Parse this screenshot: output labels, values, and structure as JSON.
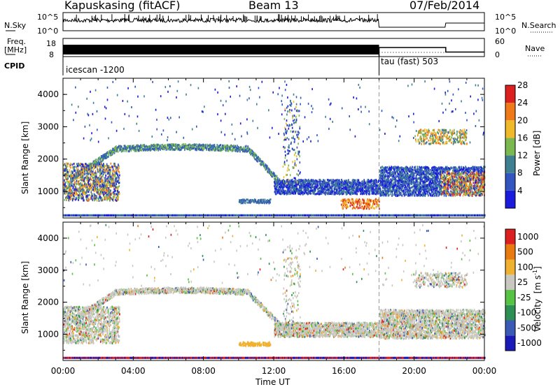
{
  "header": {
    "site": "Kapuskasing (fitACF)",
    "beam": "Beam 13",
    "date": "07/Feb/2014"
  },
  "status_panels": {
    "nsky_label": "N.Sky",
    "nsky_ticks": [
      "10^5",
      "10^0"
    ],
    "nsearch_label": "N.Search",
    "nsearch_ticks": [
      "10^5",
      "10^0"
    ],
    "freq_label_1": "Freq.",
    "freq_label_2": "[MHz]",
    "freq_ticks": [
      "18",
      "8"
    ],
    "nave_label": "Nave",
    "nave_ticks": [
      "60",
      "0"
    ],
    "cpid_label": "CPID",
    "cpid_segments": [
      {
        "name": "icescan -1200",
        "start_hour": 0
      },
      {
        "name": "tau (fast) 503",
        "start_hour": 18
      }
    ],
    "freq_value_mhz": 12,
    "nave_segments": [
      {
        "start": 18,
        "end": 21.8,
        "value": 30
      },
      {
        "start": 21.8,
        "end": 24,
        "value": 15
      }
    ]
  },
  "chart_data": [
    {
      "type": "heatmap",
      "title": "Power",
      "ylabel": "Slant Range [km]",
      "xlabel": "Time UT",
      "xlim": [
        0,
        24
      ],
      "ylim": [
        180,
        4500
      ],
      "x_ticks": [
        "00:00",
        "04:00",
        "08:00",
        "12:00",
        "16:00",
        "20:00",
        "00:00"
      ],
      "y_ticks": [
        1000,
        2000,
        3000,
        4000
      ],
      "colorbar": {
        "label": "Power [dB]",
        "ticks": [
          "4",
          "8",
          "12",
          "16",
          "20",
          "24",
          "28"
        ],
        "colors": [
          "#1b1bdd",
          "#3355c0",
          "#3f7f92",
          "#7cb850",
          "#f0b92a",
          "#f07a1a",
          "#dc2020"
        ]
      },
      "echo_regions": [
        {
          "name": "arc",
          "t_start": 1,
          "t_end": 12.5,
          "range_start_km": 1400,
          "range_peak_km": 2300
        },
        {
          "name": "near-range band",
          "t_start": 12,
          "t_end": 18,
          "range_km": 1150
        },
        {
          "name": "post-18h band",
          "t_start": 18,
          "t_end": 24,
          "range_km": 1300
        }
      ]
    },
    {
      "type": "heatmap",
      "title": "Velocity",
      "ylabel": "Slant Range [km]",
      "xlabel": "Time UT",
      "xlim": [
        0,
        24
      ],
      "ylim": [
        180,
        4500
      ],
      "x_ticks": [
        "00:00",
        "04:00",
        "08:00",
        "12:00",
        "16:00",
        "20:00",
        "00:00"
      ],
      "y_ticks": [
        1000,
        2000,
        3000,
        4000
      ],
      "colorbar": {
        "label_main": "Velocity",
        "label_unit": "[m s",
        "label_exp": "-1",
        "label_close": "]",
        "ticks": [
          "1000",
          "500",
          "100",
          "25",
          "-25",
          "-100",
          "-500",
          "-1000"
        ],
        "colors": [
          "#1a1ab8",
          "#3a5ab5",
          "#2e8f55",
          "#57c345",
          "#c8c8c0",
          "#f0b030",
          "#e87a10",
          "#dc2020"
        ]
      }
    }
  ],
  "xaxis_label": "Time UT"
}
